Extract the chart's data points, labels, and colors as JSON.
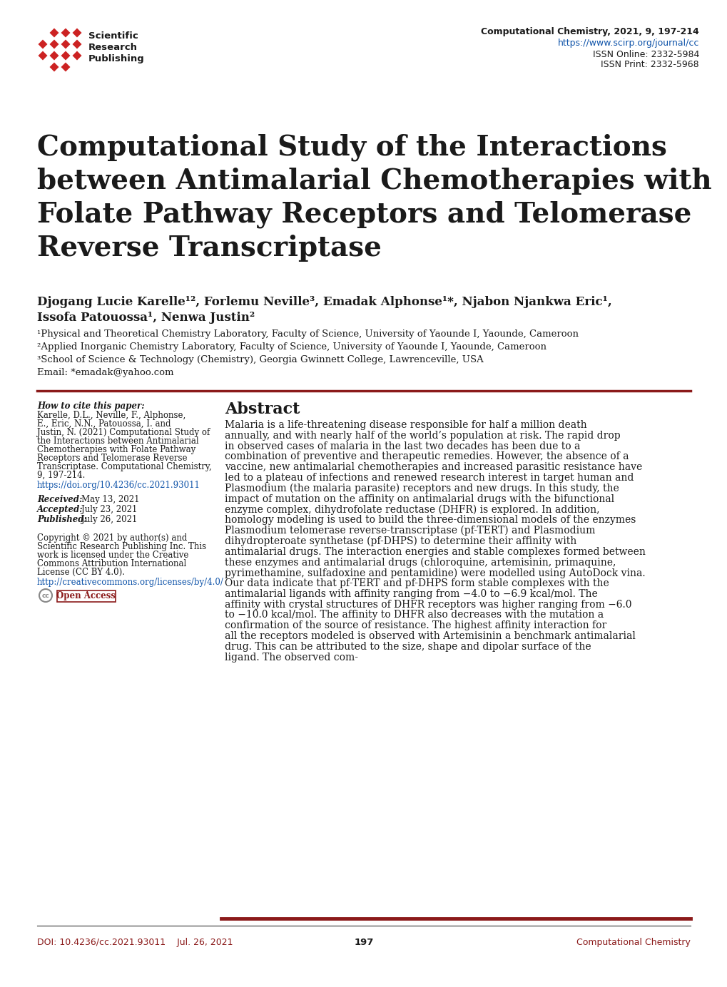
{
  "bg_color": "#ffffff",
  "header_journal": "Computational Chemistry, 2021, 9, 197-214",
  "header_url": "https://www.scirp.org/journal/cc",
  "header_issn_online": "ISSN Online: 2332-5984",
  "header_issn_print": "ISSN Print: 2332-5968",
  "title_line1": "Computational Study of the Interactions",
  "title_line2": "between Antimalarial Chemotherapies with",
  "title_line3": "Folate Pathway Receptors and Telomerase",
  "title_line4": "Reverse Transcriptase",
  "authors_line1": "Djogang Lucie Karelle¹², Forlemu Neville³, Emadak Alphonse¹*, Njabon Njankwa Eric¹,",
  "authors_line2": "Issofa Patouossa¹, Nenwa Justin²",
  "affil1": "¹Physical and Theoretical Chemistry Laboratory, Faculty of Science, University of Yaounde I, Yaounde, Cameroon",
  "affil2": "²Applied Inorganic Chemistry Laboratory, Faculty of Science, University of Yaounde I, Yaounde, Cameroon",
  "affil3": "³School of Science & Technology (Chemistry), Georgia Gwinnett College, Lawrenceville, USA",
  "email": "Email: *emadak@yahoo.com",
  "left_col_header": "How to cite this paper:",
  "left_col_cite": "Karelle, D.L., Neville, F., Alphonse, E., Eric, N.N., Patouossa, I. and Justin, N. (2021) Computational Study of the Interactions between Antimalarial Chemotherapies with Folate Pathway Receptors and Telomerase Reverse Transcriptase. Computational Chemistry, 9, 197-214.",
  "left_col_doi_cite": "https://doi.org/10.4236/cc.2021.93011",
  "received_label": "Received:",
  "received_date": "May 13, 2021",
  "accepted_label": "Accepted:",
  "accepted_date": "July 23, 2021",
  "published_label": "Published:",
  "published_date": "July 26, 2021",
  "copyright_text": "Copyright © 2021 by author(s) and Scientific Research Publishing Inc. This work is licensed under the Creative Commons Attribution International License (CC BY 4.0).",
  "cc_url": "http://creativecommons.org/licenses/by/4.0/",
  "open_access_text": "Open Access",
  "abstract_title": "Abstract",
  "abstract_text": "Malaria is a life-threatening disease responsible for half a million death annually, and with nearly half of the world’s population at risk. The rapid drop in observed cases of malaria in the last two decades has been due to a combination of preventive and therapeutic remedies. However, the absence of a vaccine, new antimalarial chemotherapies and increased parasitic resistance have led to a plateau of infections and renewed research interest in target human and Plasmodium (the malaria parasite) receptors and new drugs. In this study, the impact of mutation on the affinity on antimalarial drugs with the bifunctional enzyme complex, dihydrofolate reductase (DHFR) is explored. In addition, homology modeling is used to build the three-dimensional models of the enzymes Plasmodium telomerase reverse-transcriptase (pf-TERT) and Plasmodium dihydropteroate synthetase (pf-DHPS) to determine their affinity with antimalarial drugs. The interaction energies and stable complexes formed between these enzymes and antimalarial drugs (chloroquine, artemisinin, primaquine, pyrimethamine, sulfadoxine and pentamidine) were modelled using AutoDock vina. Our data indicate that pf-TERT and pf-DHPS form stable complexes with the antimalarial ligands with affinity ranging from −4.0 to −6.9 kcal/mol. The affinity with crystal structures of DHFR receptors was higher ranging from −6.0 to −10.0 kcal/mol. The affinity to DHFR also decreases with the mutation a confirmation of the source of resistance. The highest affinity interaction for all the receptors modeled is observed with Artemisinin a benchmark antimalarial drug. This can be attributed to the size, shape and dipolar surface of the ligand. The observed com-",
  "footer_doi": "DOI: 10.4236/cc.2021.93011",
  "footer_date": "Jul. 26, 2021",
  "footer_page": "197",
  "footer_journal": "Computational Chemistry",
  "accent_color": "#8b1a1a",
  "blue_color": "#1155aa",
  "red_diamond_color": "#cc2222",
  "text_color": "#1a1a1a",
  "separator_color": "#8b1a1a",
  "footer_text_color": "#8b1a1a"
}
